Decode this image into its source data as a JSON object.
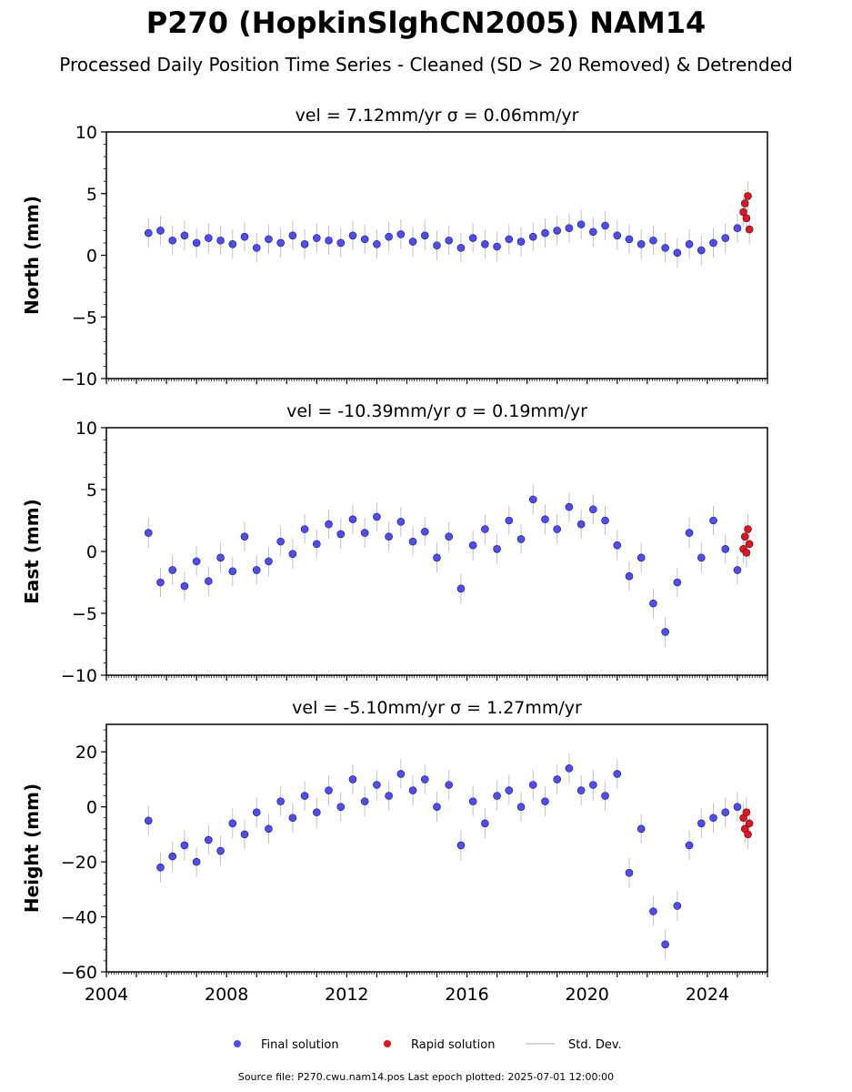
{
  "figure": {
    "title": "P270 (HopkinSlghCN2005) NAM14",
    "subtitle": "Processed Daily Position Time Series - Cleaned (SD > 20 Removed) & Detrended",
    "footer": "Source file: P270.cwu.nam14.pos  Last epoch plotted: 2025-07-01 12:00:00"
  },
  "legend": {
    "final": "Final solution",
    "rapid": "Rapid solution",
    "std": "Std. Dev."
  },
  "colors": {
    "final": "#4b4bff",
    "rapid": "#ee1111",
    "std": "#9a9a9a",
    "axis": "#000000"
  },
  "chart_data": [
    {
      "type": "scatter",
      "panel_title": "vel = 7.12mm/yr   σ = 0.06mm/yr",
      "ylabel": "North (mm)",
      "ylim": [
        -10,
        10
      ],
      "yticks": [
        -10,
        -5,
        0,
        5,
        10
      ],
      "ytick_labels": [
        "−10",
        "−5",
        "0",
        "5",
        "10"
      ],
      "xlim": [
        2004,
        2026
      ],
      "xticks": [
        2004,
        2008,
        2012,
        2016,
        2020,
        2024
      ],
      "show_xtick_labels": false,
      "series": [
        {
          "name": "Final solution",
          "x": [
            2005.4,
            2005.8,
            2006.2,
            2006.6,
            2007.0,
            2007.4,
            2007.8,
            2008.2,
            2008.6,
            2009.0,
            2009.4,
            2009.8,
            2010.2,
            2010.6,
            2011.0,
            2011.4,
            2011.8,
            2012.2,
            2012.6,
            2013.0,
            2013.4,
            2013.8,
            2014.2,
            2014.6,
            2015.0,
            2015.4,
            2015.8,
            2016.2,
            2016.6,
            2017.0,
            2017.4,
            2017.8,
            2018.2,
            2018.6,
            2019.0,
            2019.4,
            2019.8,
            2020.2,
            2020.6,
            2021.0,
            2021.4,
            2021.8,
            2022.2,
            2022.6,
            2023.0,
            2023.4,
            2023.8,
            2024.2,
            2024.6,
            2025.0
          ],
          "y": [
            1.8,
            2.0,
            1.2,
            1.6,
            1.0,
            1.4,
            1.2,
            0.9,
            1.5,
            0.6,
            1.3,
            1.0,
            1.6,
            0.9,
            1.4,
            1.2,
            1.0,
            1.6,
            1.3,
            0.9,
            1.5,
            1.7,
            1.1,
            1.6,
            0.8,
            1.2,
            0.6,
            1.4,
            0.9,
            0.7,
            1.3,
            1.1,
            1.5,
            1.8,
            2.0,
            2.2,
            2.5,
            1.9,
            2.4,
            1.6,
            1.3,
            0.9,
            1.2,
            0.6,
            0.2,
            0.9,
            0.4,
            1.0,
            1.4,
            2.2
          ]
        },
        {
          "name": "Rapid solution",
          "x": [
            2025.2,
            2025.25,
            2025.3,
            2025.35,
            2025.4
          ],
          "y": [
            3.5,
            4.2,
            3.0,
            4.8,
            2.1
          ]
        }
      ]
    },
    {
      "type": "scatter",
      "panel_title": "vel = -10.39mm/yr   σ = 0.19mm/yr",
      "ylabel": "East (mm)",
      "ylim": [
        -10,
        10
      ],
      "yticks": [
        -10,
        -5,
        0,
        5,
        10
      ],
      "ytick_labels": [
        "−10",
        "−5",
        "0",
        "5",
        "10"
      ],
      "xlim": [
        2004,
        2026
      ],
      "xticks": [
        2004,
        2008,
        2012,
        2016,
        2020,
        2024
      ],
      "show_xtick_labels": false,
      "series": [
        {
          "name": "Final solution",
          "x": [
            2005.4,
            2005.8,
            2006.2,
            2006.6,
            2007.0,
            2007.4,
            2007.8,
            2008.2,
            2008.6,
            2009.0,
            2009.4,
            2009.8,
            2010.2,
            2010.6,
            2011.0,
            2011.4,
            2011.8,
            2012.2,
            2012.6,
            2013.0,
            2013.4,
            2013.8,
            2014.2,
            2014.6,
            2015.0,
            2015.4,
            2015.8,
            2016.2,
            2016.6,
            2017.0,
            2017.4,
            2017.8,
            2018.2,
            2018.6,
            2019.0,
            2019.4,
            2019.8,
            2020.2,
            2020.6,
            2021.0,
            2021.4,
            2021.8,
            2022.2,
            2022.6,
            2023.0,
            2023.4,
            2023.8,
            2024.2,
            2024.6,
            2025.0
          ],
          "y": [
            1.5,
            -2.5,
            -1.5,
            -2.8,
            -0.8,
            -2.4,
            -0.5,
            -1.6,
            1.2,
            -1.5,
            -0.8,
            0.8,
            -0.2,
            1.8,
            0.6,
            2.2,
            1.4,
            2.6,
            1.5,
            2.8,
            1.2,
            2.4,
            0.8,
            1.6,
            -0.5,
            1.2,
            -3.0,
            0.5,
            1.8,
            0.2,
            2.5,
            1.0,
            4.2,
            2.6,
            1.8,
            3.6,
            2.2,
            3.4,
            2.5,
            0.5,
            -2.0,
            -0.5,
            -4.2,
            -6.5,
            -2.5,
            1.5,
            -0.5,
            2.5,
            0.2,
            -1.5
          ]
        },
        {
          "name": "Rapid solution",
          "x": [
            2025.2,
            2025.25,
            2025.3,
            2025.35,
            2025.4
          ],
          "y": [
            0.2,
            1.2,
            -0.1,
            1.8,
            0.6
          ]
        }
      ]
    },
    {
      "type": "scatter",
      "panel_title": "vel = -5.10mm/yr   σ = 1.27mm/yr",
      "ylabel": "Height (mm)",
      "ylim": [
        -60,
        30
      ],
      "yticks": [
        -60,
        -40,
        -20,
        0,
        20
      ],
      "ytick_labels": [
        "−60",
        "−40",
        "−20",
        "0",
        "20"
      ],
      "xlim": [
        2004,
        2026
      ],
      "xticks": [
        2004,
        2008,
        2012,
        2016,
        2020,
        2024
      ],
      "show_xtick_labels": true,
      "series": [
        {
          "name": "Final solution",
          "x": [
            2005.4,
            2005.8,
            2006.2,
            2006.6,
            2007.0,
            2007.4,
            2007.8,
            2008.2,
            2008.6,
            2009.0,
            2009.4,
            2009.8,
            2010.2,
            2010.6,
            2011.0,
            2011.4,
            2011.8,
            2012.2,
            2012.6,
            2013.0,
            2013.4,
            2013.8,
            2014.2,
            2014.6,
            2015.0,
            2015.4,
            2015.8,
            2016.2,
            2016.6,
            2017.0,
            2017.4,
            2017.8,
            2018.2,
            2018.6,
            2019.0,
            2019.4,
            2019.8,
            2020.2,
            2020.6,
            2021.0,
            2021.4,
            2021.8,
            2022.2,
            2022.6,
            2023.0,
            2023.4,
            2023.8,
            2024.2,
            2024.6,
            2025.0
          ],
          "y": [
            -5,
            -22,
            -18,
            -14,
            -20,
            -12,
            -16,
            -6,
            -10,
            -2,
            -8,
            2,
            -4,
            4,
            -2,
            6,
            0,
            10,
            2,
            8,
            4,
            12,
            6,
            10,
            0,
            8,
            -14,
            2,
            -6,
            4,
            6,
            0,
            8,
            2,
            10,
            14,
            6,
            8,
            4,
            12,
            -24,
            -8,
            -38,
            -50,
            -36,
            -14,
            -6,
            -4,
            -2,
            0
          ]
        },
        {
          "name": "Rapid solution",
          "x": [
            2025.2,
            2025.25,
            2025.3,
            2025.35,
            2025.4
          ],
          "y": [
            -4,
            -8,
            -2,
            -10,
            -6
          ]
        }
      ]
    }
  ]
}
